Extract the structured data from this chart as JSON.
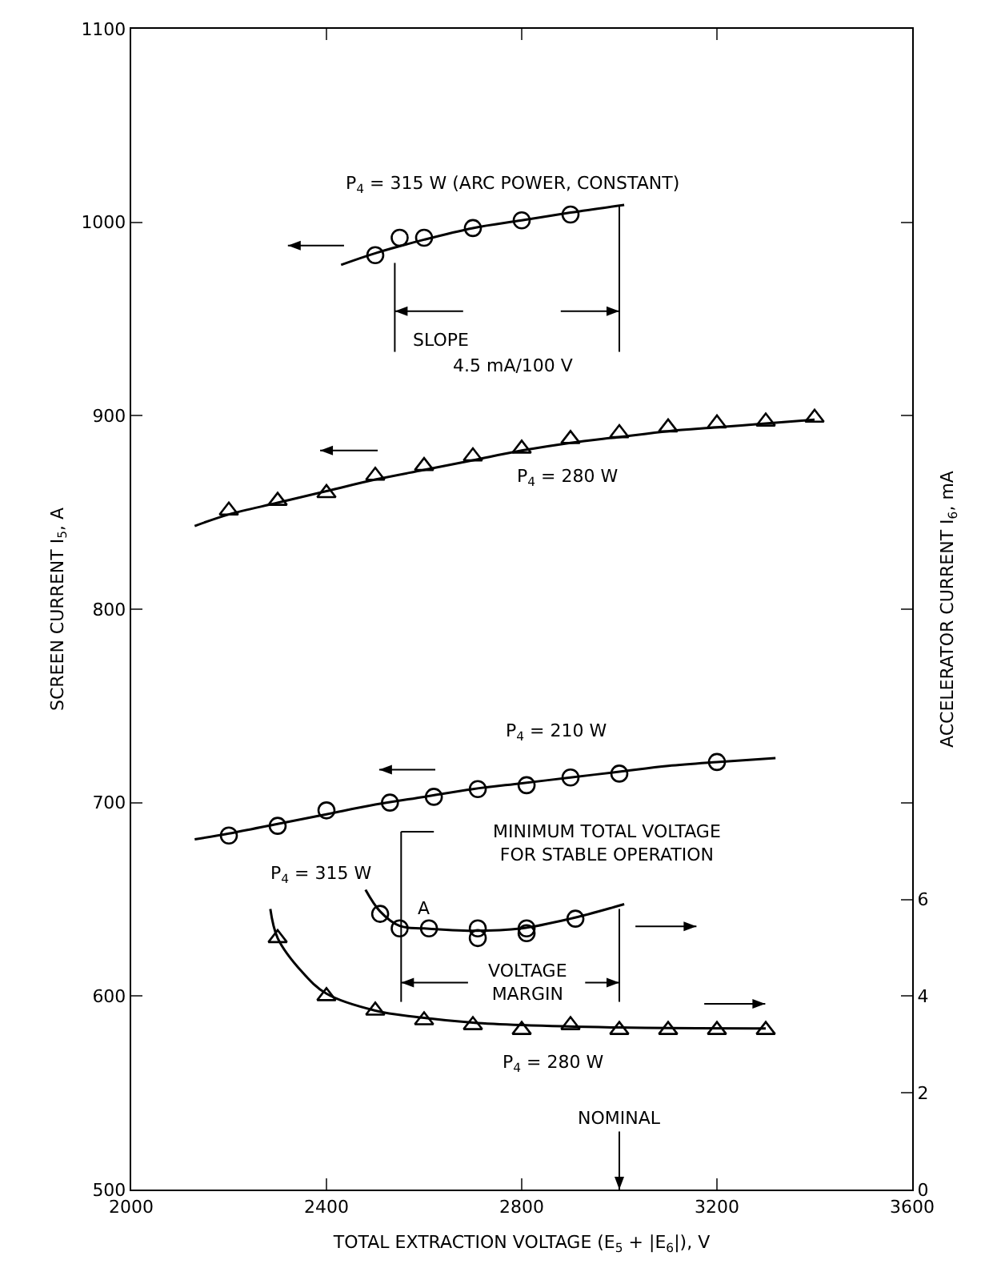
{
  "chart_data": {
    "type": "scatter",
    "xlabel": "TOTAL EXTRACTION VOLTAGE (E$_{5}$ + |E$_{6}$|), V",
    "ylabel": "SCREEN CURRENT I$_{5}$, A",
    "y2label": "ACCELERATOR CURRENT I$_{6}$, mA",
    "xlim": [
      2000,
      3600
    ],
    "xticks": [
      2000,
      2400,
      2800,
      3200,
      3600
    ],
    "ylim": [
      500,
      1100
    ],
    "yticks": [
      500,
      600,
      700,
      800,
      900,
      1000,
      1100
    ],
    "y2lim": [
      0,
      24
    ],
    "y2ticks": [
      0,
      2,
      4,
      6
    ],
    "grid": false,
    "series": [
      {
        "marker": "circle",
        "color": "#000000",
        "x": [
          2500,
          2550,
          2600,
          2700,
          2800,
          2900
        ],
        "values": [
          983,
          992,
          992,
          997,
          1001,
          1004
        ]
      },
      {
        "type": "line",
        "marker": "none",
        "color": "#000000",
        "x": [
          2430,
          2500,
          2600,
          2700,
          2800,
          2900,
          3010
        ],
        "values": [
          978,
          984,
          991,
          997,
          1001,
          1005,
          1009
        ]
      },
      {
        "marker": "triangle",
        "color": "#000000",
        "x": [
          2200,
          2300,
          2400,
          2500,
          2600,
          2700,
          2800,
          2900,
          3000,
          3100,
          3200,
          3300,
          3400
        ],
        "values": [
          851,
          856,
          860,
          869,
          874,
          879,
          883,
          888,
          891,
          894,
          896,
          897,
          899
        ]
      },
      {
        "type": "line",
        "marker": "none",
        "color": "#000000",
        "x": [
          2130,
          2200,
          2300,
          2400,
          2500,
          2600,
          2700,
          2800,
          2900,
          3000,
          3100,
          3200,
          3300,
          3400
        ],
        "values": [
          843,
          849,
          855,
          861,
          867,
          872,
          877,
          882,
          886,
          889,
          892,
          894,
          896,
          898
        ]
      },
      {
        "marker": "circle",
        "color": "#000000",
        "x": [
          2200,
          2300,
          2400,
          2530,
          2620,
          2710,
          2810,
          2900,
          3000,
          3200
        ],
        "values": [
          683,
          688,
          696,
          700,
          703,
          707,
          709,
          713,
          715,
          721
        ]
      },
      {
        "type": "line",
        "marker": "none",
        "color": "#000000",
        "x": [
          2130,
          2200,
          2300,
          2400,
          2500,
          2600,
          2700,
          2800,
          2900,
          3000,
          3100,
          3200,
          3320
        ],
        "values": [
          681,
          684,
          689,
          694,
          699,
          703,
          707,
          710,
          713,
          716,
          719,
          721,
          723
        ]
      },
      {
        "axis": "y2",
        "marker": "circle",
        "color": "#000000",
        "x": [
          2510,
          2550,
          2610,
          2710,
          2710,
          2810,
          2810,
          2910
        ],
        "values": [
          5.7,
          5.4,
          5.4,
          5.4,
          5.2,
          5.4,
          5.3,
          5.6
        ]
      },
      {
        "type": "line",
        "axis": "y2",
        "marker": "none",
        "color": "#000000",
        "x": [
          2480,
          2510,
          2550,
          2600,
          2700,
          2800,
          2900,
          3010
        ],
        "values": [
          6.2,
          5.75,
          5.45,
          5.4,
          5.35,
          5.4,
          5.6,
          5.9
        ]
      },
      {
        "axis": "y2",
        "marker": "triangle",
        "color": "#000000",
        "x": [
          2300,
          2400,
          2500,
          2600,
          2700,
          2800,
          2900,
          3000,
          3100,
          3200,
          3300
        ],
        "values": [
          5.2,
          4.0,
          3.7,
          3.5,
          3.4,
          3.3,
          3.4,
          3.3,
          3.3,
          3.3,
          3.3
        ]
      },
      {
        "type": "line",
        "axis": "y2",
        "marker": "none",
        "color": "#000000",
        "x": [
          2285,
          2300,
          2350,
          2400,
          2500,
          2600,
          2700,
          2800,
          3000,
          3300
        ],
        "values": [
          5.8,
          5.2,
          4.5,
          4.05,
          3.7,
          3.55,
          3.45,
          3.4,
          3.35,
          3.33
        ]
      }
    ],
    "annotations": [
      "P$_{4}$ = 315 W (ARC POWER, CONSTANT)",
      "SLOPE",
      "4.5 mA/100 V",
      "P$_{4}$ = 280 W",
      "P$_{4}$ = 210 W",
      "MINIMUM TOTAL VOLTAGE\nFOR STABLE OPERATION",
      "P$_{4}$ = 315 W",
      "A",
      "VOLTAGE\nMARGIN",
      "P$_{4}$ = 280 W",
      "NOMINAL"
    ]
  }
}
